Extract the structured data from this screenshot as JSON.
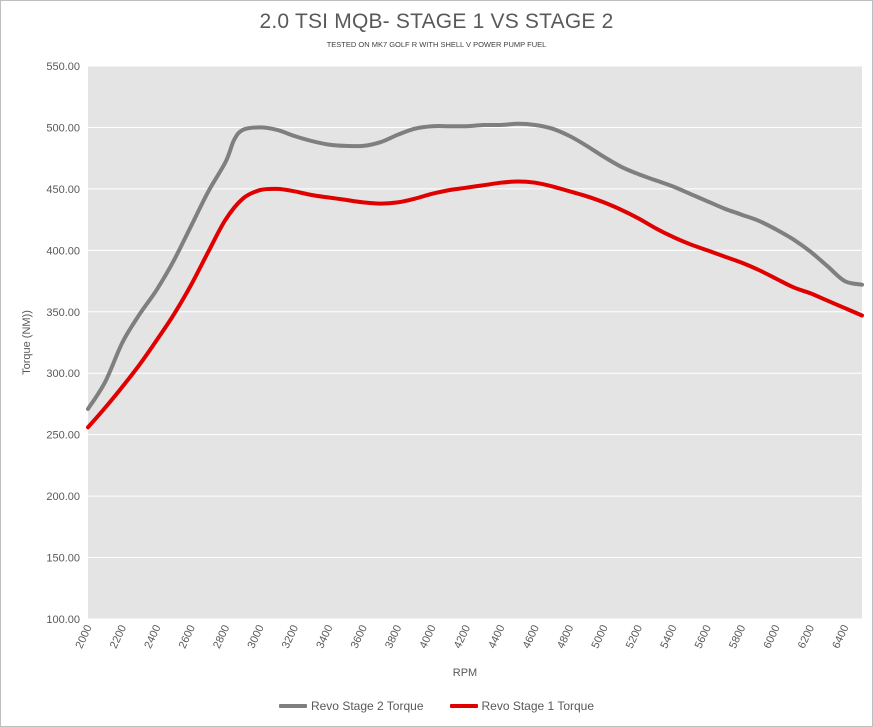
{
  "chart_data": {
    "type": "line",
    "title": "2.0 TSI MQB- STAGE 1 VS STAGE 2",
    "subtitle": "TESTED ON MK7 GOLF R WITH SHELL V POWER PUMP FUEL",
    "xlabel": "RPM",
    "ylabel": "Torque (NM))",
    "ylim": [
      100,
      550
    ],
    "yticks": [
      "100.00",
      "150.00",
      "200.00",
      "250.00",
      "300.00",
      "350.00",
      "400.00",
      "450.00",
      "500.00",
      "550.00"
    ],
    "xticks": [
      "2000",
      "2200",
      "2400",
      "2600",
      "2800",
      "3000",
      "3200",
      "3400",
      "3600",
      "3800",
      "4000",
      "4200",
      "4400",
      "4600",
      "4800",
      "5000",
      "5200",
      "5400",
      "5600",
      "5800",
      "6000",
      "6200",
      "6400"
    ],
    "grid": "horizontal",
    "background": "#e4e4e4",
    "legend_position": "bottom",
    "series": [
      {
        "name": "Revo Stage 2 Torque",
        "color": "#7f7f7f",
        "x": [
          2000,
          2100,
          2200,
          2300,
          2400,
          2500,
          2600,
          2700,
          2800,
          2850,
          2900,
          3000,
          3100,
          3200,
          3300,
          3400,
          3500,
          3600,
          3700,
          3800,
          3900,
          4000,
          4100,
          4200,
          4300,
          4400,
          4500,
          4600,
          4700,
          4800,
          4900,
          5000,
          5100,
          5200,
          5300,
          5400,
          5500,
          5600,
          5700,
          5800,
          5900,
          6000,
          6100,
          6200,
          6300,
          6400,
          6500
        ],
        "values": [
          271,
          293,
          325,
          348,
          368,
          392,
          420,
          448,
          472,
          490,
          498,
          500,
          498,
          493,
          489,
          486,
          485,
          485,
          488,
          494,
          499,
          501,
          501,
          501,
          502,
          502,
          503,
          502,
          499,
          493,
          485,
          476,
          468,
          462,
          457,
          452,
          446,
          440,
          434,
          429,
          424,
          417,
          409,
          399,
          387,
          375,
          372
        ]
      },
      {
        "name": "Revo Stage 1 Torque",
        "color": "#e00000",
        "x": [
          2000,
          2100,
          2200,
          2300,
          2400,
          2500,
          2600,
          2700,
          2800,
          2900,
          3000,
          3100,
          3200,
          3300,
          3400,
          3500,
          3600,
          3700,
          3800,
          3900,
          4000,
          4100,
          4200,
          4300,
          4400,
          4500,
          4600,
          4700,
          4800,
          4900,
          5000,
          5100,
          5200,
          5300,
          5400,
          5500,
          5600,
          5700,
          5800,
          5900,
          6000,
          6100,
          6200,
          6300,
          6400,
          6500
        ],
        "values": [
          256,
          272,
          289,
          307,
          327,
          348,
          372,
          399,
          425,
          442,
          449,
          450,
          448,
          445,
          443,
          441,
          439,
          438,
          439,
          442,
          446,
          449,
          451,
          453,
          455,
          456,
          455,
          452,
          448,
          444,
          439,
          433,
          426,
          418,
          411,
          405,
          400,
          395,
          390,
          384,
          377,
          370,
          365,
          359,
          353,
          347
        ]
      }
    ]
  }
}
